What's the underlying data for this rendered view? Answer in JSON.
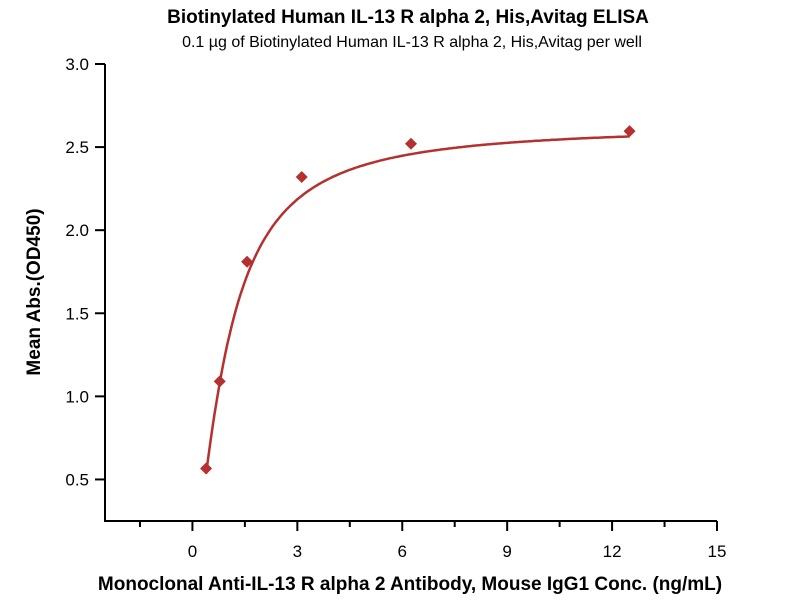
{
  "chart_data": {
    "type": "scatter",
    "title": "Biotinylated Human IL-13 R alpha 2, His,Avitag ELISA",
    "subtitle": "0.1 µg of Biotinylated Human IL-13 R alpha 2, His,Avitag per well",
    "xlabel": "Monoclonal Anti-IL-13 R alpha 2 Antibody, Mouse IgG1 Conc. (ng/mL)",
    "ylabel": "Mean Abs.(OD450)",
    "xlim": [
      -2.5,
      15
    ],
    "ylim": [
      0.25,
      3.0
    ],
    "xticks": [
      "0",
      "3",
      "6",
      "9",
      "12",
      "15"
    ],
    "xtick_values": [
      0,
      3,
      6,
      9,
      12,
      15
    ],
    "xminor_values": [
      -1.5,
      1.5,
      4.5,
      7.5,
      10.5,
      13.5
    ],
    "yticks": [
      "0.5",
      "1.0",
      "1.5",
      "2.0",
      "2.5",
      "3.0"
    ],
    "ytick_values": [
      0.5,
      1.0,
      1.5,
      2.0,
      2.5,
      3.0
    ],
    "grid": false,
    "series": [
      {
        "name": "Mean Abs.",
        "color": "#b5302e",
        "x": [
          0.39,
          0.78,
          1.5625,
          3.125,
          6.25,
          12.5
        ],
        "y": [
          0.566,
          1.09,
          1.81,
          2.32,
          2.52,
          2.596
        ]
      }
    ],
    "fit": {
      "type": "4PL",
      "bottom": 0,
      "top": 2.63,
      "ec50": 1.0,
      "hill": 1.45
    }
  }
}
